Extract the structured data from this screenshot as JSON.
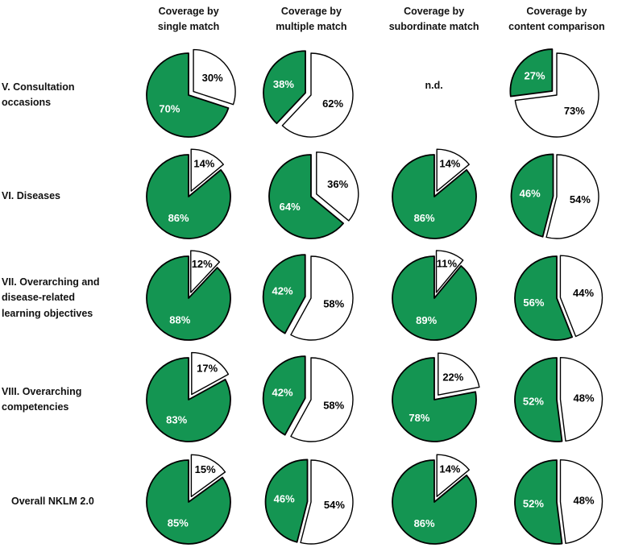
{
  "figure": {
    "background": "#FFFFFF"
  },
  "columns": [
    {
      "line1": "Coverage by",
      "line2": "single match"
    },
    {
      "line1": "Coverage by",
      "line2": "multiple match"
    },
    {
      "line1": "Coverage by",
      "line2": "subordinate match"
    },
    {
      "line1": "Coverage by",
      "line2": "content comparison"
    }
  ],
  "rows": [
    {
      "line1": "V. Consultation",
      "line2": "occasions",
      "line3": ""
    },
    {
      "line1": "VI. Diseases",
      "line2": "",
      "line3": ""
    },
    {
      "line1": "VII. Overarching and",
      "line2": "disease-related",
      "line3": "learning objectives"
    },
    {
      "line1": "VIII. Overarching",
      "line2": "competencies",
      "line3": ""
    },
    {
      "line1": "Overall NKLM 2.0",
      "line2": "",
      "line3": ""
    }
  ],
  "chart_data": {
    "type": "pie",
    "grid": "5 rows x 4 columns of two-slice pies",
    "unit": "percent",
    "columns": [
      "Coverage by single match",
      "Coverage by multiple match",
      "Coverage by subordinate match",
      "Coverage by content comparison"
    ],
    "rows": [
      "V. Consultation occasions",
      "VI. Diseases",
      "VII. Overarching and disease-related learning objectives",
      "VIII. Overarching competencies",
      "Overall NKLM 2.0"
    ],
    "covered_percent": [
      [
        70,
        38,
        null,
        27
      ],
      [
        86,
        64,
        86,
        46
      ],
      [
        88,
        42,
        89,
        56
      ],
      [
        83,
        42,
        78,
        52
      ],
      [
        85,
        46,
        86,
        52
      ]
    ],
    "not_covered_percent": [
      [
        30,
        62,
        null,
        73
      ],
      [
        14,
        36,
        14,
        54
      ],
      [
        12,
        58,
        11,
        44
      ],
      [
        17,
        58,
        22,
        48
      ],
      [
        15,
        54,
        14,
        48
      ]
    ],
    "missing_value_label": "n.d.",
    "colors": {
      "covered": "#149552",
      "not_covered": "#FFFFFF",
      "outline": "#000000",
      "covered_label_text": "#FFFFFF",
      "not_covered_label_text": "#000000"
    },
    "layout": {
      "start_angle_deg": 0,
      "direction": "clockwise",
      "white_slice_first": true,
      "minority_slice_exploded": true,
      "legend": "none",
      "labels": "percent inside slices"
    }
  }
}
